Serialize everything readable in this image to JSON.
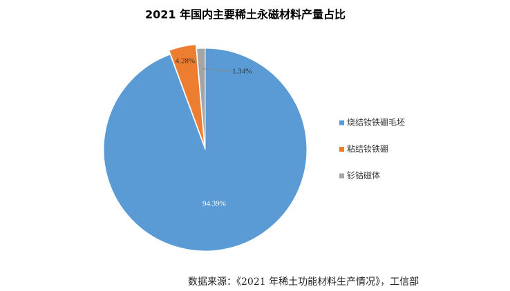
{
  "chart_data": {
    "type": "pie",
    "title": "2021 年国内主要稀土永磁材料产量占比",
    "categories": [
      "烧结钕铁硼毛坯",
      "粘结钕铁硼",
      "钐钴磁体"
    ],
    "values": [
      94.39,
      4.28,
      1.34
    ],
    "value_labels": [
      "94.39%",
      "4.28%",
      "1.34%"
    ],
    "colors": [
      "#5b9bd5",
      "#ed7d31",
      "#a5a5a5"
    ],
    "legend": "right",
    "source": "数据来源：《2021 年稀土功能材料生产情况》，工信部"
  }
}
